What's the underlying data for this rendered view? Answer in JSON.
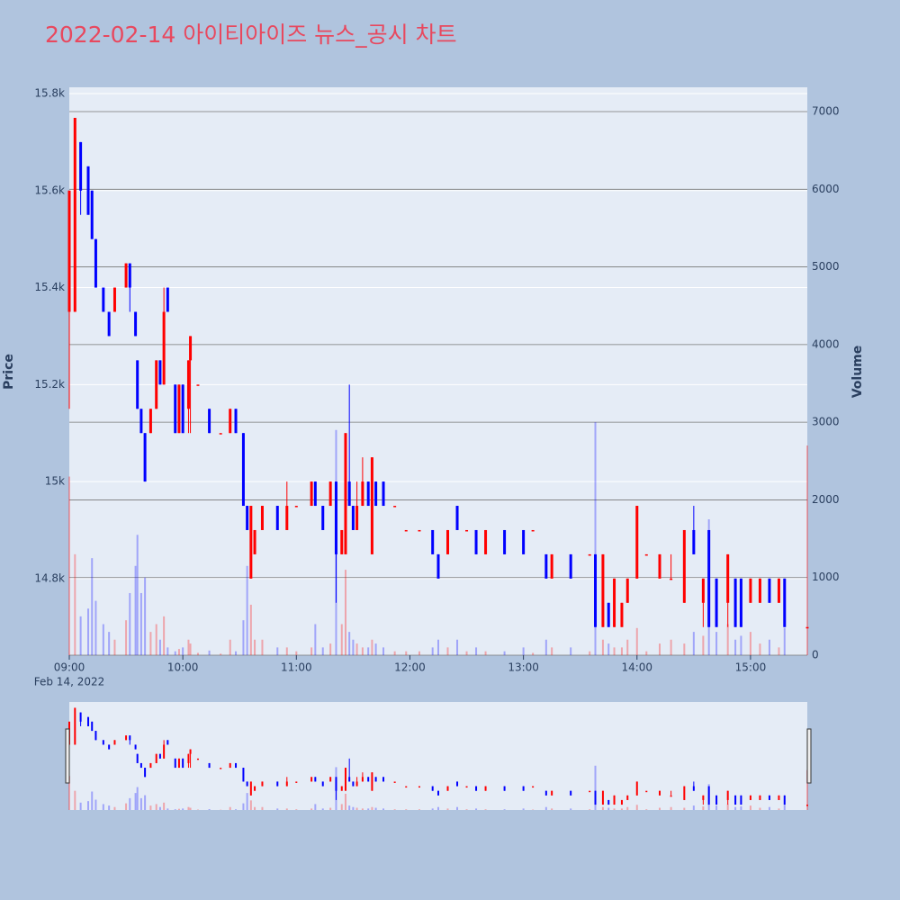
{
  "chart_data": {
    "type": "candlestick",
    "title": "2022-02-14 아이티아이즈 뉴스_공시 차트",
    "title_color": "#e8485e",
    "date_label": "Feb 14, 2022",
    "y_label": "Price",
    "y2_label": "Volume",
    "increasing_color": "#ff0000",
    "decreasing_color": "#0000ff",
    "x": [
      "09:00",
      "09:03",
      "09:06",
      "09:10",
      "09:12",
      "09:14",
      "09:18",
      "09:21",
      "09:24",
      "09:30",
      "09:32",
      "09:35",
      "09:36",
      "09:38",
      "09:40",
      "09:43",
      "09:46",
      "09:48",
      "09:50",
      "09:52",
      "09:56",
      "09:58",
      "10:00",
      "10:03",
      "10:04",
      "10:08",
      "10:14",
      "10:20",
      "10:25",
      "10:28",
      "10:32",
      "10:34",
      "10:36",
      "10:38",
      "10:42",
      "10:50",
      "10:55",
      "11:00",
      "11:08",
      "11:10",
      "11:14",
      "11:18",
      "11:21",
      "11:24",
      "11:26",
      "11:28",
      "11:30",
      "11:32",
      "11:35",
      "11:38",
      "11:40",
      "11:42",
      "11:46",
      "11:52",
      "11:58",
      "12:05",
      "12:12",
      "12:15",
      "12:20",
      "12:25",
      "12:30",
      "12:35",
      "12:40",
      "12:50",
      "13:00",
      "13:05",
      "13:12",
      "13:15",
      "13:25",
      "13:35",
      "13:38",
      "13:42",
      "13:45",
      "13:48",
      "13:52",
      "13:55",
      "14:00",
      "14:05",
      "14:12",
      "14:18",
      "14:25",
      "14:30",
      "14:35",
      "14:38",
      "14:42",
      "14:48",
      "14:52",
      "14:55",
      "15:00",
      "15:05",
      "15:10",
      "15:15",
      "15:18",
      "15:30"
    ],
    "open": [
      15350,
      15350,
      15700,
      15650,
      15600,
      15500,
      15400,
      15350,
      15350,
      15400,
      15450,
      15350,
      15250,
      15150,
      15100,
      15100,
      15150,
      15250,
      15200,
      15400,
      15200,
      15100,
      15200,
      15150,
      15250,
      15200,
      15150,
      15100,
      15100,
      15150,
      15100,
      14950,
      14800,
      14850,
      14900,
      14950,
      14900,
      14950,
      14950,
      15000,
      14950,
      14950,
      15000,
      14850,
      14850,
      15000,
      14950,
      14900,
      14950,
      15000,
      14850,
      15000,
      15000,
      14950,
      14900,
      14900,
      14900,
      14850,
      14850,
      14950,
      14900,
      14900,
      14850,
      14900,
      14900,
      14900,
      14850,
      14800,
      14850,
      14850,
      14850,
      14700,
      14750,
      14700,
      14700,
      14750,
      14800,
      14850,
      14800,
      14800,
      14750,
      14900,
      14750,
      14900,
      14800,
      14750,
      14800,
      14800,
      14750,
      14750,
      14800,
      14750,
      14800,
      14700
    ],
    "high": [
      15600,
      15750,
      15700,
      15650,
      15600,
      15500,
      15400,
      15350,
      15400,
      15450,
      15450,
      15350,
      15250,
      15150,
      15100,
      15150,
      15250,
      15250,
      15400,
      15400,
      15200,
      15200,
      15200,
      15250,
      15300,
      15200,
      15150,
      15100,
      15150,
      15150,
      15100,
      14950,
      14950,
      14900,
      14950,
      14950,
      15000,
      14950,
      15000,
      15000,
      14950,
      15000,
      15000,
      14900,
      15100,
      15200,
      14950,
      15000,
      15050,
      15000,
      15050,
      15000,
      15000,
      14950,
      14900,
      14900,
      14900,
      14850,
      14900,
      14950,
      14900,
      14900,
      14900,
      14900,
      14900,
      14900,
      14850,
      14850,
      14850,
      14850,
      14850,
      14850,
      14750,
      14800,
      14750,
      14800,
      14950,
      14850,
      14850,
      14850,
      14900,
      14950,
      14800,
      14900,
      14800,
      14850,
      14800,
      14800,
      14800,
      14800,
      14800,
      14800,
      14800,
      14700
    ],
    "low": [
      15150,
      15350,
      15550,
      15550,
      15500,
      15400,
      15350,
      15300,
      15350,
      15400,
      15350,
      15300,
      15150,
      15100,
      15000,
      15100,
      15150,
      15200,
      15200,
      15350,
      15100,
      15100,
      15100,
      15100,
      15100,
      15200,
      15100,
      15100,
      15100,
      15100,
      14950,
      14900,
      14800,
      14850,
      14900,
      14900,
      14900,
      14950,
      14950,
      14950,
      14900,
      14950,
      14750,
      14850,
      14850,
      14950,
      14900,
      14900,
      14950,
      14950,
      14850,
      14950,
      14950,
      14950,
      14900,
      14900,
      14850,
      14800,
      14850,
      14900,
      14900,
      14850,
      14850,
      14850,
      14850,
      14900,
      14800,
      14800,
      14800,
      14850,
      14700,
      14700,
      14700,
      14700,
      14700,
      14750,
      14800,
      14850,
      14800,
      14800,
      14750,
      14850,
      14700,
      14700,
      14700,
      14700,
      14700,
      14700,
      14750,
      14750,
      14750,
      14750,
      14700,
      14700
    ],
    "close": [
      15600,
      15750,
      15600,
      15550,
      15500,
      15400,
      15350,
      15300,
      15400,
      15450,
      15400,
      15300,
      15150,
      15100,
      15000,
      15150,
      15250,
      15200,
      15350,
      15350,
      15100,
      15200,
      15100,
      15250,
      15300,
      15200,
      15100,
      15100,
      15150,
      15100,
      14950,
      14900,
      14950,
      14900,
      14950,
      14900,
      14950,
      14950,
      15000,
      14950,
      14900,
      15000,
      14850,
      14900,
      15100,
      14950,
      14900,
      14950,
      15000,
      14950,
      15050,
      14950,
      14950,
      14950,
      14900,
      14900,
      14850,
      14800,
      14900,
      14900,
      14900,
      14850,
      14900,
      14850,
      14850,
      14900,
      14800,
      14850,
      14800,
      14850,
      14700,
      14850,
      14700,
      14800,
      14750,
      14800,
      14950,
      14850,
      14850,
      14800,
      14900,
      14850,
      14800,
      14700,
      14700,
      14850,
      14700,
      14700,
      14800,
      14800,
      14750,
      14800,
      14700,
      14700
    ],
    "volume": [
      2300,
      1300,
      500,
      600,
      1250,
      700,
      400,
      300,
      200,
      450,
      800,
      1150,
      1550,
      800,
      1000,
      300,
      400,
      200,
      500,
      100,
      50,
      80,
      100,
      200,
      150,
      30,
      60,
      20,
      200,
      50,
      450,
      1150,
      650,
      200,
      200,
      100,
      100,
      50,
      100,
      400,
      100,
      150,
      2900,
      400,
      1100,
      300,
      200,
      150,
      100,
      100,
      200,
      150,
      100,
      50,
      50,
      50,
      100,
      200,
      100,
      200,
      50,
      100,
      50,
      50,
      100,
      30,
      200,
      100,
      100,
      50,
      3000,
      200,
      150,
      100,
      100,
      200,
      350,
      50,
      150,
      200,
      150,
      300,
      250,
      1750,
      300,
      400,
      200,
      250,
      300,
      150,
      200,
      100,
      350,
      2700
    ],
    "xlim": [
      "09:00",
      "15:30"
    ],
    "xticks": [
      "09:00",
      "10:00",
      "11:00",
      "12:00",
      "13:00",
      "14:00",
      "15:00"
    ],
    "ylim": [
      14642,
      15813
    ],
    "yticks": [
      {
        "value": 14800,
        "label": "14.8k"
      },
      {
        "value": 15000,
        "label": "15k"
      },
      {
        "value": 15200,
        "label": "15.2k"
      },
      {
        "value": 15400,
        "label": "15.4k"
      },
      {
        "value": 15600,
        "label": "15.6k"
      },
      {
        "value": 15800,
        "label": "15.8k"
      }
    ],
    "y2lim": [
      0,
      7313
    ],
    "y2ticks": [
      0,
      1000,
      2000,
      3000,
      4000,
      5000,
      6000,
      7000
    ],
    "grid": true
  }
}
